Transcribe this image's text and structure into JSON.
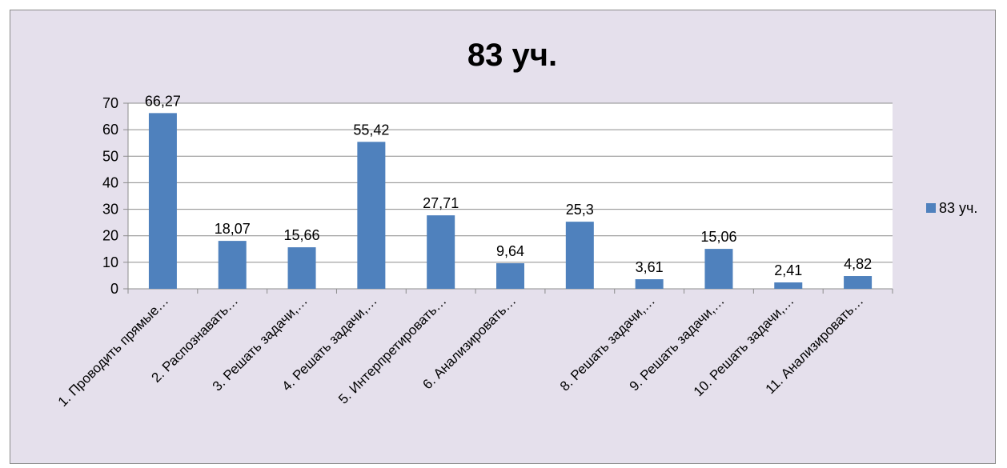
{
  "chart_data": {
    "type": "bar",
    "title": "83 уч.",
    "xlabel": "",
    "ylabel": "",
    "ylim": [
      0,
      70
    ],
    "yticks": [
      0,
      10,
      20,
      30,
      40,
      50,
      60,
      70
    ],
    "grid": true,
    "legend_position": "right",
    "categories": [
      "1. Проводить прямые…",
      "2. Распознавать…",
      "3. Решать задачи,…",
      "4. Решать задачи,…",
      "5. Интерпретировать…",
      "6. Анализировать…",
      "",
      "8. Решать задачи,…",
      "9. Решать задачи,…",
      "10. Решать задачи,…",
      "11. Анализировать…"
    ],
    "series": [
      {
        "name": "83 уч.",
        "color": "#4f81bd",
        "values": [
          66.27,
          18.07,
          15.66,
          55.42,
          27.71,
          9.64,
          25.3,
          3.61,
          15.06,
          2.41,
          4.82
        ],
        "value_labels": [
          "66,27",
          "18,07",
          "15,66",
          "55,42",
          "27,71",
          "9,64",
          "25,3",
          "3,61",
          "15,06",
          "2,41",
          "4,82"
        ]
      }
    ]
  }
}
